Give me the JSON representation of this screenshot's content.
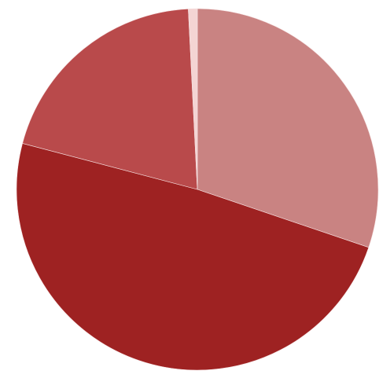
{
  "chart_data": {
    "type": "pie",
    "start_angle_deg": 0,
    "direction": "clockwise",
    "slices": [
      {
        "value": 30.2,
        "color": "#c98382"
      },
      {
        "value": 48.9,
        "color": "#9e2222"
      },
      {
        "value": 20.1,
        "color": "#b94a4b"
      },
      {
        "value": 0.8,
        "color": "#f4d4d3"
      }
    ],
    "legend": "none",
    "grid": false
  }
}
